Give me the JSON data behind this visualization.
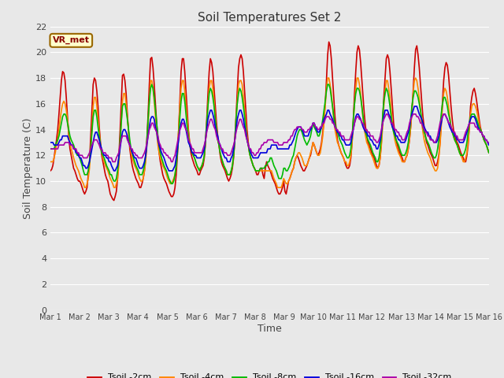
{
  "title": "Soil Temperatures Set 2",
  "xlabel": "Time",
  "ylabel": "Soil Temperature (C)",
  "ylim": [
    0,
    22
  ],
  "yticks": [
    0,
    2,
    4,
    6,
    8,
    10,
    12,
    14,
    16,
    18,
    20,
    22
  ],
  "background_color": "#e8e8e8",
  "plot_bg_color": "#e8e8e8",
  "annotation_text": "VR_met",
  "annotation_box_color": "#ffffcc",
  "annotation_border_color": "#996600",
  "series": [
    {
      "label": "Tsoil -2cm",
      "color": "#cc0000",
      "linewidth": 1.2
    },
    {
      "label": "Tsoil -4cm",
      "color": "#ff8800",
      "linewidth": 1.2
    },
    {
      "label": "Tsoil -8cm",
      "color": "#00bb00",
      "linewidth": 1.2
    },
    {
      "label": "Tsoil -16cm",
      "color": "#0000dd",
      "linewidth": 1.2
    },
    {
      "label": "Tsoil -32cm",
      "color": "#aa00aa",
      "linewidth": 1.2
    }
  ],
  "x_tick_labels": [
    "Mar 1",
    "Mar 2",
    "Mar 3",
    "Mar 4",
    "Mar 5",
    "Mar 6",
    "Mar 7",
    "Mar 8",
    "Mar 9",
    "Mar 10",
    "Mar 11",
    "Mar 12",
    "Mar 13",
    "Mar 14",
    "Mar 15",
    "Mar 16"
  ],
  "num_days": 15,
  "points_per_day": 24,
  "tsoil_2cm": [
    10.8,
    10.9,
    11.2,
    11.8,
    12.5,
    13.2,
    14.0,
    15.2,
    16.5,
    17.8,
    18.5,
    18.4,
    17.8,
    16.5,
    15.0,
    13.5,
    12.5,
    12.0,
    11.5,
    11.0,
    10.8,
    10.5,
    10.2,
    10.0,
    10.0,
    9.8,
    9.5,
    9.2,
    9.0,
    9.2,
    9.5,
    10.5,
    11.5,
    13.5,
    15.5,
    17.5,
    18.0,
    17.8,
    17.0,
    15.8,
    14.2,
    13.0,
    12.0,
    11.5,
    11.0,
    10.5,
    10.2,
    10.0,
    9.5,
    9.0,
    8.8,
    8.6,
    8.5,
    8.8,
    9.2,
    10.2,
    11.8,
    13.8,
    16.0,
    18.2,
    18.3,
    17.8,
    16.8,
    15.2,
    13.8,
    12.5,
    11.8,
    11.2,
    10.8,
    10.5,
    10.2,
    10.0,
    9.8,
    9.5,
    9.5,
    9.8,
    10.2,
    10.8,
    11.8,
    13.2,
    15.2,
    17.5,
    19.5,
    19.6,
    18.8,
    17.5,
    16.0,
    14.5,
    13.2,
    12.2,
    11.5,
    11.0,
    10.5,
    10.2,
    10.0,
    9.8,
    9.5,
    9.2,
    9.0,
    8.8,
    8.8,
    9.0,
    9.5,
    10.5,
    12.0,
    14.0,
    16.2,
    18.5,
    19.5,
    19.5,
    18.5,
    17.0,
    15.5,
    14.0,
    13.0,
    12.2,
    11.8,
    11.5,
    11.2,
    11.0,
    10.8,
    10.5,
    10.5,
    10.8,
    11.0,
    11.2,
    11.8,
    13.0,
    14.8,
    16.8,
    18.5,
    19.5,
    19.2,
    18.5,
    17.2,
    15.8,
    14.5,
    13.5,
    12.8,
    12.0,
    11.5,
    11.2,
    11.0,
    10.8,
    10.5,
    10.2,
    10.0,
    10.2,
    10.5,
    11.0,
    11.8,
    13.2,
    15.0,
    17.0,
    18.8,
    19.5,
    19.8,
    19.5,
    18.5,
    17.0,
    15.5,
    14.0,
    13.0,
    12.2,
    11.8,
    11.5,
    11.2,
    11.0,
    10.8,
    10.5,
    10.5,
    10.8,
    11.0,
    11.0,
    10.5,
    10.2,
    11.0,
    11.5,
    11.2,
    11.0,
    10.8,
    10.5,
    10.2,
    10.0,
    9.8,
    9.5,
    9.2,
    9.0,
    9.0,
    9.2,
    9.5,
    10.0,
    9.2,
    9.0,
    9.5,
    10.0,
    10.2,
    10.5,
    10.8,
    11.0,
    11.5,
    11.8,
    12.0,
    11.8,
    11.5,
    11.2,
    11.0,
    10.8,
    10.8,
    11.0,
    11.2,
    11.5,
    11.8,
    12.0,
    12.5,
    13.0,
    12.8,
    12.5,
    12.2,
    12.0,
    12.2,
    12.5,
    13.0,
    13.8,
    14.8,
    16.0,
    17.8,
    19.8,
    20.8,
    20.5,
    19.5,
    18.0,
    16.5,
    15.0,
    14.0,
    13.2,
    12.8,
    12.5,
    12.2,
    12.0,
    11.8,
    11.5,
    11.2,
    11.0,
    11.0,
    11.2,
    11.8,
    13.0,
    14.8,
    16.8,
    18.5,
    20.0,
    20.5,
    20.2,
    19.2,
    17.8,
    16.5,
    15.2,
    14.2,
    13.5,
    13.0,
    12.8,
    12.5,
    12.2,
    12.0,
    11.8,
    11.5,
    11.2,
    11.0,
    11.2,
    11.8,
    13.0,
    14.8,
    16.5,
    18.0,
    19.5,
    19.8,
    19.5,
    18.5,
    17.2,
    15.8,
    14.5,
    13.8,
    13.2,
    12.8,
    12.5,
    12.2,
    12.0,
    11.8,
    11.5,
    11.5,
    11.8,
    12.0,
    12.5,
    13.2,
    14.2,
    15.5,
    17.0,
    18.8,
    20.2,
    20.5,
    19.8,
    18.8,
    17.5,
    16.2,
    15.0,
    14.2,
    13.5,
    13.0,
    12.8,
    12.5,
    12.2,
    12.0,
    11.8,
    11.5,
    11.2,
    11.2,
    11.5,
    12.0,
    13.0,
    14.5,
    16.2,
    17.8,
    18.8,
    19.2,
    19.0,
    18.2,
    17.0,
    15.8,
    14.8,
    14.0,
    13.5,
    13.2,
    13.0,
    12.8,
    12.5,
    12.2,
    12.0,
    11.8,
    11.5,
    11.5,
    12.0,
    12.8,
    14.2,
    15.8,
    16.5,
    17.0,
    17.2,
    16.8,
    16.2,
    15.5,
    14.8,
    14.2,
    13.8,
    13.5,
    13.2,
    13.0,
    12.8,
    12.5,
    12.2
  ],
  "tsoil_4cm": [
    11.5,
    11.5,
    11.5,
    11.8,
    12.2,
    12.8,
    13.2,
    14.0,
    14.8,
    15.5,
    16.0,
    16.2,
    16.0,
    15.5,
    14.8,
    13.8,
    13.0,
    12.5,
    12.2,
    11.8,
    11.5,
    11.2,
    11.0,
    10.8,
    10.5,
    10.2,
    10.0,
    9.8,
    9.5,
    9.5,
    9.8,
    10.2,
    11.0,
    12.5,
    14.0,
    15.8,
    16.5,
    16.5,
    15.8,
    14.8,
    13.8,
    12.8,
    12.2,
    11.8,
    11.5,
    11.2,
    11.0,
    10.8,
    10.5,
    10.2,
    10.0,
    9.8,
    9.5,
    9.5,
    9.8,
    10.2,
    11.2,
    12.8,
    14.5,
    16.2,
    16.8,
    16.8,
    16.0,
    15.0,
    13.8,
    12.8,
    12.2,
    11.8,
    11.5,
    11.2,
    11.0,
    10.8,
    10.5,
    10.2,
    10.0,
    10.0,
    10.2,
    10.8,
    11.5,
    12.8,
    14.5,
    16.2,
    17.8,
    17.8,
    17.2,
    16.2,
    15.0,
    13.8,
    12.8,
    12.2,
    11.8,
    11.5,
    11.2,
    11.0,
    10.8,
    10.5,
    10.2,
    10.0,
    9.8,
    9.8,
    10.0,
    10.2,
    10.5,
    11.2,
    12.5,
    14.0,
    15.8,
    17.2,
    17.8,
    17.8,
    17.0,
    15.8,
    14.8,
    13.8,
    13.0,
    12.5,
    12.2,
    12.0,
    11.8,
    11.5,
    11.2,
    11.0,
    11.0,
    11.0,
    11.2,
    11.5,
    12.0,
    13.0,
    14.5,
    16.0,
    17.2,
    17.8,
    17.8,
    17.2,
    16.2,
    15.0,
    14.0,
    13.2,
    12.8,
    12.2,
    11.8,
    11.5,
    11.2,
    11.0,
    10.8,
    10.5,
    10.5,
    10.5,
    10.8,
    11.2,
    12.0,
    13.2,
    14.8,
    16.2,
    17.5,
    17.8,
    17.8,
    17.5,
    16.5,
    15.5,
    14.5,
    13.5,
    12.8,
    12.2,
    11.8,
    11.5,
    11.2,
    11.0,
    10.8,
    10.8,
    10.8,
    10.8,
    10.8,
    10.8,
    10.8,
    10.8,
    10.8,
    10.8,
    10.8,
    10.8,
    10.8,
    10.8,
    10.5,
    10.2,
    10.0,
    9.8,
    9.5,
    9.5,
    9.5,
    9.5,
    9.8,
    10.2,
    10.0,
    9.8,
    9.8,
    10.0,
    10.2,
    10.5,
    10.8,
    11.0,
    11.5,
    11.8,
    12.0,
    12.2,
    12.2,
    12.0,
    11.8,
    11.5,
    11.2,
    11.2,
    11.2,
    11.5,
    11.8,
    12.2,
    12.5,
    13.0,
    12.8,
    12.5,
    12.2,
    12.0,
    12.0,
    12.2,
    12.8,
    13.5,
    14.5,
    15.8,
    17.2,
    18.0,
    18.0,
    17.5,
    16.8,
    15.8,
    14.8,
    14.0,
    13.5,
    13.0,
    12.8,
    12.5,
    12.2,
    12.0,
    11.8,
    11.5,
    11.5,
    11.2,
    11.2,
    11.5,
    12.0,
    13.0,
    14.5,
    16.0,
    17.2,
    18.0,
    18.0,
    17.5,
    16.8,
    15.8,
    14.8,
    14.0,
    13.5,
    13.0,
    12.8,
    12.5,
    12.2,
    12.0,
    11.8,
    11.5,
    11.2,
    11.0,
    11.0,
    11.2,
    11.8,
    12.8,
    14.2,
    15.8,
    17.0,
    17.8,
    17.8,
    17.2,
    16.5,
    15.5,
    14.5,
    13.8,
    13.2,
    12.8,
    12.5,
    12.2,
    12.0,
    11.8,
    11.5,
    11.5,
    11.5,
    11.8,
    12.0,
    12.5,
    13.2,
    14.2,
    15.5,
    16.8,
    17.8,
    18.0,
    17.8,
    17.2,
    16.5,
    15.5,
    14.5,
    13.8,
    13.2,
    12.8,
    12.5,
    12.2,
    12.0,
    11.8,
    11.5,
    11.2,
    11.0,
    10.8,
    10.8,
    11.0,
    11.8,
    12.8,
    14.2,
    15.8,
    16.8,
    17.2,
    17.0,
    16.5,
    15.8,
    15.0,
    14.2,
    13.8,
    13.5,
    13.2,
    13.0,
    12.8,
    12.5,
    12.2,
    12.0,
    11.8,
    11.5,
    11.5,
    11.8,
    12.2,
    13.0,
    14.2,
    15.2,
    15.8,
    16.0,
    16.0,
    15.8,
    15.5,
    15.0,
    14.5,
    14.0,
    13.8,
    13.5,
    13.2,
    13.0,
    12.8,
    12.5,
    12.2
  ],
  "tsoil_8cm": [
    12.5,
    12.5,
    12.5,
    12.5,
    12.8,
    13.0,
    13.2,
    13.5,
    14.0,
    14.5,
    15.0,
    15.2,
    15.2,
    15.0,
    14.5,
    14.0,
    13.5,
    13.2,
    13.0,
    12.8,
    12.5,
    12.2,
    12.0,
    12.0,
    11.8,
    11.5,
    11.2,
    10.8,
    10.5,
    10.5,
    10.5,
    10.8,
    11.5,
    12.5,
    13.8,
    15.0,
    15.5,
    15.5,
    15.0,
    14.2,
    13.5,
    12.8,
    12.2,
    12.0,
    11.8,
    11.5,
    11.2,
    11.0,
    10.8,
    10.5,
    10.5,
    10.2,
    10.0,
    10.0,
    10.2,
    10.8,
    11.8,
    13.0,
    14.5,
    15.8,
    16.0,
    16.0,
    15.5,
    14.8,
    14.0,
    13.2,
    12.5,
    12.2,
    11.8,
    11.5,
    11.2,
    11.0,
    10.8,
    10.5,
    10.5,
    10.5,
    10.8,
    11.2,
    12.0,
    13.2,
    14.8,
    16.2,
    17.2,
    17.5,
    17.2,
    16.5,
    15.5,
    14.5,
    13.5,
    12.8,
    12.2,
    11.8,
    11.5,
    11.2,
    11.0,
    10.8,
    10.5,
    10.2,
    10.0,
    9.8,
    9.8,
    10.0,
    10.5,
    11.2,
    12.2,
    13.5,
    15.0,
    16.2,
    16.8,
    16.8,
    16.2,
    15.2,
    14.2,
    13.5,
    12.8,
    12.5,
    12.2,
    12.0,
    11.8,
    11.5,
    11.2,
    11.0,
    10.8,
    11.0,
    11.2,
    11.5,
    12.0,
    13.2,
    14.5,
    15.8,
    16.8,
    17.2,
    17.0,
    16.5,
    15.8,
    14.8,
    14.0,
    13.2,
    12.8,
    12.2,
    11.8,
    11.5,
    11.2,
    11.0,
    10.8,
    10.5,
    10.5,
    10.5,
    10.8,
    11.2,
    12.0,
    13.2,
    14.8,
    16.0,
    16.8,
    17.2,
    17.0,
    16.5,
    15.8,
    15.0,
    14.0,
    13.2,
    12.8,
    12.2,
    11.8,
    11.5,
    11.2,
    11.0,
    10.8,
    10.8,
    10.8,
    10.8,
    11.0,
    11.0,
    11.0,
    11.0,
    11.2,
    11.2,
    11.5,
    11.5,
    11.8,
    11.8,
    11.5,
    11.2,
    11.0,
    10.8,
    10.5,
    10.2,
    10.2,
    10.2,
    10.5,
    11.0,
    11.0,
    10.8,
    10.8,
    11.0,
    11.2,
    11.5,
    11.8,
    12.0,
    12.5,
    13.0,
    13.5,
    13.8,
    14.0,
    14.0,
    13.8,
    13.5,
    13.2,
    13.0,
    12.8,
    13.0,
    13.2,
    13.5,
    14.0,
    14.5,
    14.2,
    14.0,
    13.8,
    13.5,
    13.5,
    13.8,
    14.2,
    14.8,
    15.5,
    16.2,
    17.0,
    17.5,
    17.5,
    17.2,
    16.5,
    15.8,
    15.0,
    14.5,
    14.0,
    13.8,
    13.5,
    13.2,
    13.0,
    12.8,
    12.5,
    12.2,
    12.0,
    11.8,
    11.8,
    12.0,
    12.5,
    13.5,
    14.8,
    16.0,
    16.8,
    17.2,
    17.2,
    17.0,
    16.5,
    15.8,
    15.0,
    14.2,
    13.8,
    13.5,
    13.2,
    13.0,
    12.8,
    12.5,
    12.2,
    12.0,
    11.8,
    11.5,
    11.5,
    11.8,
    12.5,
    13.5,
    15.0,
    16.2,
    16.8,
    17.2,
    17.0,
    16.5,
    15.8,
    15.0,
    14.2,
    13.8,
    13.5,
    13.2,
    13.0,
    12.8,
    12.5,
    12.2,
    12.0,
    12.0,
    12.0,
    12.2,
    12.5,
    13.0,
    13.8,
    14.8,
    15.8,
    16.5,
    17.0,
    17.0,
    16.8,
    16.5,
    16.0,
    15.5,
    14.8,
    14.2,
    13.8,
    13.5,
    13.2,
    13.0,
    12.8,
    12.5,
    12.2,
    12.0,
    11.8,
    11.8,
    12.0,
    12.5,
    13.2,
    14.2,
    15.2,
    16.0,
    16.5,
    16.5,
    16.2,
    15.8,
    15.2,
    14.8,
    14.2,
    13.8,
    13.5,
    13.2,
    13.0,
    12.8,
    12.5,
    12.2,
    12.0,
    12.0,
    12.0,
    12.2,
    12.5,
    13.0,
    13.8,
    14.5,
    15.0,
    15.2,
    15.2,
    15.2,
    15.0,
    14.8,
    14.5,
    14.2,
    14.0,
    13.8,
    13.5,
    13.2,
    13.0,
    12.8,
    12.5,
    12.2
  ],
  "tsoil_16cm": [
    13.0,
    13.0,
    13.0,
    12.8,
    12.8,
    12.8,
    12.8,
    13.0,
    13.2,
    13.2,
    13.5,
    13.5,
    13.5,
    13.5,
    13.5,
    13.2,
    13.0,
    12.8,
    12.8,
    12.5,
    12.5,
    12.2,
    12.2,
    12.0,
    11.8,
    11.8,
    11.5,
    11.2,
    11.2,
    11.0,
    11.0,
    11.2,
    11.5,
    12.0,
    12.5,
    13.0,
    13.5,
    13.8,
    13.8,
    13.5,
    13.2,
    12.8,
    12.5,
    12.2,
    12.0,
    12.0,
    11.8,
    11.8,
    11.5,
    11.5,
    11.2,
    11.0,
    10.8,
    10.8,
    11.0,
    11.2,
    11.8,
    12.5,
    13.2,
    13.8,
    14.0,
    14.0,
    13.8,
    13.5,
    13.0,
    12.8,
    12.5,
    12.2,
    12.0,
    11.8,
    11.8,
    11.5,
    11.2,
    11.0,
    11.0,
    11.0,
    11.2,
    11.5,
    12.0,
    12.8,
    13.5,
    14.2,
    14.8,
    15.0,
    15.0,
    14.8,
    14.2,
    13.8,
    13.2,
    12.8,
    12.5,
    12.2,
    12.0,
    11.8,
    11.5,
    11.2,
    11.0,
    10.8,
    10.8,
    10.8,
    10.8,
    11.0,
    11.2,
    11.8,
    12.5,
    13.2,
    14.0,
    14.5,
    14.8,
    14.8,
    14.5,
    14.0,
    13.5,
    13.0,
    12.8,
    12.5,
    12.2,
    12.2,
    12.0,
    12.0,
    11.8,
    11.8,
    11.8,
    11.8,
    12.0,
    12.2,
    12.5,
    13.2,
    14.0,
    14.8,
    15.2,
    15.5,
    15.5,
    15.2,
    14.8,
    14.2,
    13.8,
    13.5,
    13.0,
    12.8,
    12.5,
    12.2,
    12.0,
    11.8,
    11.8,
    11.5,
    11.5,
    11.5,
    11.8,
    12.0,
    12.5,
    13.2,
    14.0,
    14.8,
    15.2,
    15.5,
    15.5,
    15.2,
    14.8,
    14.2,
    13.8,
    13.2,
    12.8,
    12.5,
    12.2,
    12.0,
    11.8,
    11.8,
    11.8,
    11.8,
    11.8,
    12.0,
    12.2,
    12.2,
    12.2,
    12.2,
    12.2,
    12.2,
    12.5,
    12.5,
    12.5,
    12.8,
    12.8,
    12.8,
    12.8,
    12.8,
    12.5,
    12.5,
    12.5,
    12.5,
    12.5,
    12.5,
    12.5,
    12.5,
    12.5,
    12.5,
    12.8,
    12.8,
    13.0,
    13.2,
    13.5,
    13.8,
    14.0,
    14.2,
    14.2,
    14.2,
    14.0,
    13.8,
    13.5,
    13.5,
    13.5,
    13.5,
    13.8,
    14.0,
    14.2,
    14.5,
    14.5,
    14.2,
    14.0,
    13.8,
    13.8,
    14.0,
    14.2,
    14.5,
    14.8,
    15.0,
    15.2,
    15.5,
    15.5,
    15.2,
    15.0,
    14.8,
    14.5,
    14.2,
    14.0,
    13.8,
    13.8,
    13.5,
    13.5,
    13.2,
    13.2,
    13.0,
    12.8,
    12.8,
    12.8,
    12.8,
    13.0,
    13.5,
    14.0,
    14.5,
    15.0,
    15.2,
    15.2,
    15.0,
    14.8,
    14.5,
    14.2,
    14.0,
    13.8,
    13.8,
    13.5,
    13.5,
    13.2,
    13.2,
    13.0,
    12.8,
    12.8,
    12.5,
    12.5,
    12.8,
    13.2,
    13.8,
    14.5,
    15.0,
    15.5,
    15.5,
    15.5,
    15.2,
    15.0,
    14.5,
    14.2,
    14.0,
    13.8,
    13.5,
    13.5,
    13.2,
    13.2,
    13.0,
    13.0,
    13.0,
    13.0,
    13.2,
    13.5,
    13.8,
    14.2,
    14.8,
    15.2,
    15.5,
    15.8,
    15.8,
    15.8,
    15.5,
    15.2,
    15.0,
    14.8,
    14.5,
    14.2,
    14.0,
    13.8,
    13.8,
    13.5,
    13.5,
    13.2,
    13.2,
    13.0,
    13.0,
    13.0,
    13.2,
    13.5,
    14.0,
    14.5,
    15.0,
    15.2,
    15.2,
    15.0,
    14.8,
    14.5,
    14.2,
    14.0,
    13.8,
    13.8,
    13.5,
    13.5,
    13.2,
    13.2,
    13.0,
    13.0,
    13.0,
    13.0,
    13.2,
    13.5,
    13.8,
    14.2,
    14.5,
    14.8,
    15.0,
    15.0,
    15.0,
    14.8,
    14.5,
    14.2,
    14.0,
    13.8,
    13.8,
    13.5,
    13.5,
    13.2,
    13.2,
    13.0,
    12.8
  ],
  "tsoil_32cm": [
    12.5,
    12.5,
    12.5,
    12.5,
    12.5,
    12.5,
    12.5,
    12.8,
    12.8,
    12.8,
    12.8,
    12.8,
    13.0,
    13.0,
    13.0,
    13.0,
    12.8,
    12.8,
    12.8,
    12.5,
    12.5,
    12.5,
    12.2,
    12.2,
    12.0,
    12.0,
    12.0,
    11.8,
    11.8,
    11.8,
    11.8,
    12.0,
    12.2,
    12.5,
    12.8,
    13.0,
    13.2,
    13.2,
    13.2,
    13.0,
    12.8,
    12.5,
    12.5,
    12.2,
    12.2,
    12.2,
    12.0,
    12.0,
    11.8,
    11.8,
    11.8,
    11.5,
    11.5,
    11.5,
    11.8,
    12.0,
    12.2,
    12.8,
    13.2,
    13.5,
    13.5,
    13.5,
    13.5,
    13.2,
    13.0,
    12.8,
    12.5,
    12.5,
    12.2,
    12.2,
    12.0,
    12.0,
    11.8,
    11.8,
    11.8,
    11.8,
    12.0,
    12.2,
    12.5,
    13.0,
    13.5,
    14.0,
    14.2,
    14.5,
    14.5,
    14.2,
    14.0,
    13.8,
    13.5,
    13.0,
    12.8,
    12.5,
    12.5,
    12.2,
    12.2,
    12.0,
    12.0,
    11.8,
    11.8,
    11.5,
    11.5,
    11.8,
    12.0,
    12.5,
    13.0,
    13.5,
    14.0,
    14.2,
    14.5,
    14.5,
    14.2,
    14.0,
    13.8,
    13.2,
    13.0,
    12.8,
    12.5,
    12.5,
    12.2,
    12.2,
    12.2,
    12.2,
    12.2,
    12.2,
    12.2,
    12.5,
    12.8,
    13.2,
    13.8,
    14.2,
    14.5,
    14.8,
    14.8,
    14.5,
    14.2,
    14.0,
    13.5,
    13.2,
    13.0,
    12.8,
    12.5,
    12.5,
    12.2,
    12.2,
    12.2,
    12.0,
    12.0,
    12.0,
    12.2,
    12.5,
    12.8,
    13.2,
    13.8,
    14.2,
    14.5,
    14.8,
    14.8,
    14.5,
    14.2,
    14.0,
    13.5,
    13.2,
    12.8,
    12.5,
    12.5,
    12.2,
    12.2,
    12.0,
    12.0,
    12.2,
    12.2,
    12.5,
    12.5,
    12.8,
    12.8,
    13.0,
    13.0,
    13.0,
    13.2,
    13.2,
    13.2,
    13.2,
    13.2,
    13.0,
    13.0,
    13.0,
    13.0,
    12.8,
    12.8,
    12.8,
    12.8,
    13.0,
    13.0,
    13.0,
    13.0,
    13.2,
    13.2,
    13.5,
    13.5,
    13.8,
    14.0,
    14.0,
    14.2,
    14.2,
    14.2,
    14.2,
    14.0,
    14.0,
    13.8,
    13.8,
    13.8,
    14.0,
    14.0,
    14.2,
    14.2,
    14.5,
    14.5,
    14.2,
    14.2,
    14.0,
    14.0,
    14.2,
    14.2,
    14.5,
    14.5,
    14.8,
    15.0,
    15.0,
    15.0,
    14.8,
    14.8,
    14.5,
    14.5,
    14.2,
    14.0,
    14.0,
    13.8,
    13.8,
    13.5,
    13.5,
    13.5,
    13.2,
    13.2,
    13.2,
    13.2,
    13.2,
    13.5,
    13.8,
    14.0,
    14.5,
    14.8,
    15.0,
    15.0,
    14.8,
    14.8,
    14.5,
    14.5,
    14.2,
    14.0,
    14.0,
    13.8,
    13.8,
    13.5,
    13.5,
    13.5,
    13.2,
    13.2,
    13.0,
    13.0,
    13.2,
    13.5,
    14.0,
    14.5,
    14.8,
    15.0,
    15.2,
    15.2,
    15.0,
    14.8,
    14.5,
    14.5,
    14.2,
    14.0,
    14.0,
    13.8,
    13.8,
    13.5,
    13.5,
    13.2,
    13.2,
    13.2,
    13.5,
    13.8,
    14.0,
    14.5,
    14.8,
    15.0,
    15.2,
    15.2,
    15.2,
    15.0,
    15.0,
    14.8,
    14.5,
    14.5,
    14.2,
    14.0,
    13.8,
    13.8,
    13.5,
    13.5,
    13.2,
    13.2,
    13.2,
    13.0,
    13.0,
    13.2,
    13.5,
    14.0,
    14.5,
    14.8,
    15.0,
    15.2,
    15.2,
    15.0,
    14.8,
    14.5,
    14.5,
    14.2,
    14.0,
    13.8,
    13.8,
    13.5,
    13.5,
    13.2,
    13.2,
    13.2,
    13.2,
    13.2,
    13.5,
    13.8,
    14.0,
    14.2,
    14.5,
    14.5,
    14.5,
    14.5,
    14.5,
    14.2,
    14.2,
    14.0,
    14.0,
    13.8,
    13.8,
    13.5,
    13.5,
    13.2,
    13.2,
    13.0,
    13.0
  ]
}
